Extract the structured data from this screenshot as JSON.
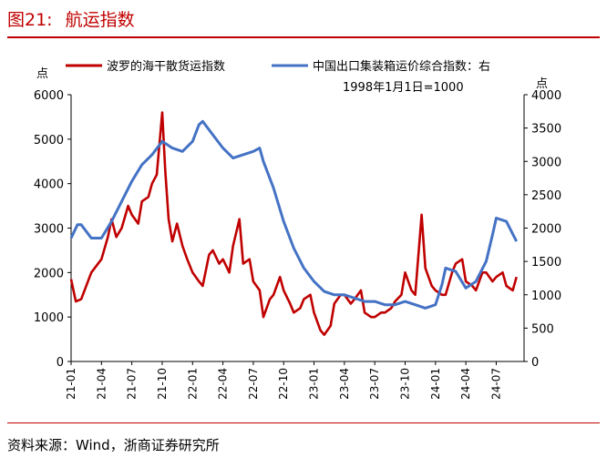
{
  "header": {
    "figure_label": "图21:",
    "title": "航运指数"
  },
  "footer": {
    "source": "资料来源：Wind，浙商证券研究所"
  },
  "colors": {
    "title": "#c00000",
    "bdi": "#c00000",
    "ccfi": "#4472c4",
    "axis": "#000000"
  },
  "chart_data": {
    "type": "line",
    "title": "航运指数",
    "left_axis_unit": "点",
    "right_axis_unit": "点",
    "right_axis_unit_note": "右",
    "ylim_left": [
      0,
      6000
    ],
    "ylim_right": [
      0,
      4000
    ],
    "y_ticks_left": [
      0,
      1000,
      2000,
      3000,
      4000,
      5000,
      6000
    ],
    "y_ticks_right": [
      0,
      500,
      1000,
      1500,
      2000,
      2500,
      3000,
      3500,
      4000
    ],
    "x_ticks": [
      "21-01",
      "21-04",
      "21-07",
      "21-10",
      "22-01",
      "22-04",
      "22-07",
      "22-10",
      "23-01",
      "23-04",
      "23-07",
      "23-10",
      "24-01",
      "24-04",
      "24-07"
    ],
    "x_range": [
      "2021-01",
      "2024-09"
    ],
    "grid": false,
    "legend_placement": "top",
    "series": [
      {
        "name": "波罗的海干散货运指数",
        "axis": "left",
        "color": "#c00000",
        "x": [
          "2021-01",
          "2021-01-15",
          "2021-02",
          "2021-03",
          "2021-04",
          "2021-04-20",
          "2021-05",
          "2021-05-15",
          "2021-06",
          "2021-06-20",
          "2021-07",
          "2021-07-20",
          "2021-08",
          "2021-08-20",
          "2021-09",
          "2021-09-15",
          "2021-10",
          "2021-10-10",
          "2021-10-20",
          "2021-11",
          "2021-11-15",
          "2021-12",
          "2021-12-15",
          "2022-01",
          "2022-01-20",
          "2022-02",
          "2022-02-20",
          "2022-03",
          "2022-03-20",
          "2022-04",
          "2022-04-20",
          "2022-05",
          "2022-05-20",
          "2022-06",
          "2022-06-20",
          "2022-07",
          "2022-07-20",
          "2022-08",
          "2022-08-20",
          "2022-09",
          "2022-09-20",
          "2022-10",
          "2022-10-20",
          "2022-11",
          "2022-11-20",
          "2022-12",
          "2022-12-20",
          "2023-01",
          "2023-01-20",
          "2023-02",
          "2023-02-20",
          "2023-03",
          "2023-03-20",
          "2023-04",
          "2023-04-20",
          "2023-05",
          "2023-05-20",
          "2023-06",
          "2023-06-20",
          "2023-07",
          "2023-07-20",
          "2023-08",
          "2023-08-20",
          "2023-09",
          "2023-09-20",
          "2023-10",
          "2023-10-20",
          "2023-11",
          "2023-11-20",
          "2023-12",
          "2023-12-20",
          "2024-01",
          "2024-01-20",
          "2024-02",
          "2024-02-20",
          "2024-03",
          "2024-03-20",
          "2024-04",
          "2024-04-20",
          "2024-05",
          "2024-05-20",
          "2024-06",
          "2024-06-20",
          "2024-07",
          "2024-07-20",
          "2024-08",
          "2024-08-20",
          "2024-09"
        ],
        "values": [
          1850,
          1350,
          1400,
          2000,
          2300,
          2800,
          3200,
          2800,
          3000,
          3500,
          3300,
          3100,
          3600,
          3700,
          4000,
          4200,
          5600,
          4300,
          3200,
          2700,
          3100,
          2600,
          2300,
          2000,
          1800,
          1700,
          2400,
          2500,
          2200,
          2300,
          2000,
          2600,
          3200,
          2200,
          2300,
          1800,
          1600,
          1000,
          1400,
          1500,
          1900,
          1600,
          1300,
          1100,
          1200,
          1400,
          1500,
          1100,
          700,
          600,
          800,
          1300,
          1500,
          1500,
          1300,
          1400,
          1600,
          1100,
          1000,
          1000,
          1100,
          1100,
          1200,
          1350,
          1500,
          2000,
          1600,
          1500,
          3300,
          2100,
          1700,
          1600,
          1500,
          1500,
          2000,
          2200,
          2300,
          1800,
          1700,
          1600,
          2000,
          2000,
          1800,
          1900,
          2000,
          1700,
          1600,
          1900
        ]
      },
      {
        "name": "中国出口集装箱运价综合指数：右",
        "axis": "right",
        "color": "#4472c4",
        "note": "1998年1月1日=1000",
        "x": [
          "2021-01",
          "2021-01-20",
          "2021-02",
          "2021-03",
          "2021-04",
          "2021-05",
          "2021-06",
          "2021-07",
          "2021-08",
          "2021-09",
          "2021-10",
          "2021-11",
          "2021-12",
          "2022-01",
          "2022-01-20",
          "2022-02",
          "2022-03",
          "2022-04",
          "2022-05",
          "2022-06",
          "2022-07",
          "2022-07-20",
          "2022-08",
          "2022-09",
          "2022-10",
          "2022-11",
          "2022-12",
          "2023-01",
          "2023-02",
          "2023-03",
          "2023-04",
          "2023-05",
          "2023-06",
          "2023-07",
          "2023-08",
          "2023-09",
          "2023-10",
          "2023-11",
          "2023-12",
          "2024-01",
          "2024-01-20",
          "2024-02",
          "2024-03",
          "2024-04",
          "2024-05",
          "2024-06",
          "2024-06-20",
          "2024-07",
          "2024-08",
          "2024-09"
        ],
        "values": [
          1850,
          2050,
          2050,
          1850,
          1850,
          2100,
          2400,
          2700,
          2950,
          3100,
          3300,
          3200,
          3150,
          3300,
          3550,
          3600,
          3400,
          3200,
          3050,
          3100,
          3150,
          3200,
          3000,
          2600,
          2100,
          1700,
          1400,
          1200,
          1050,
          1000,
          1000,
          950,
          900,
          900,
          850,
          850,
          900,
          850,
          800,
          850,
          1150,
          1400,
          1350,
          1100,
          1200,
          1500,
          1900,
          2150,
          2100,
          1800
        ]
      }
    ]
  }
}
